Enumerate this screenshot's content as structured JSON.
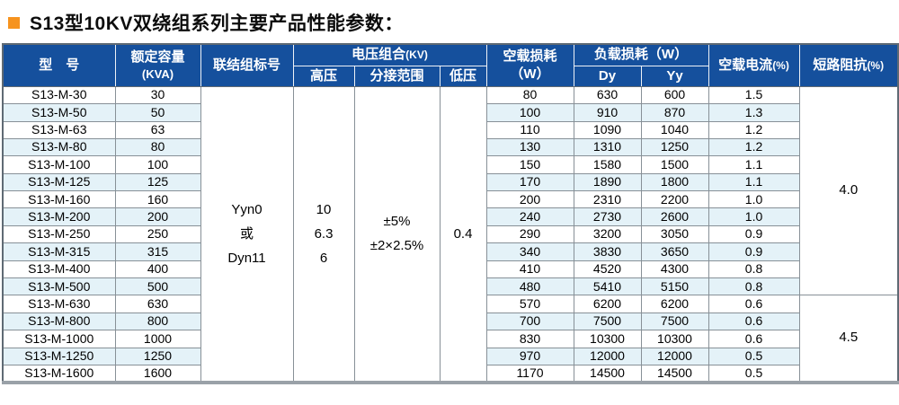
{
  "page": {
    "title": "S13型10KV双绕组系列主要产品性能参数："
  },
  "colors": {
    "header_bg": "#15509D",
    "row_alt_bg": "#E4F2F8",
    "bullet_orange": "#F6931E",
    "border_gray": "#879097"
  },
  "table": {
    "headers": {
      "model": "型　号",
      "capacity_line1": "额定容量",
      "capacity_line2": "(KVA)",
      "connection": "联结组标号",
      "voltage_label": "电压组合",
      "voltage_suffix": "(KV)",
      "hv": "高压",
      "tap": "分接范围",
      "lv": "低压",
      "no_load_loss_line1": "空载损耗",
      "no_load_loss_line2": "（W）",
      "load_loss": "负载损耗（W）",
      "dy": "Dy",
      "yy": "Yy",
      "no_load_current_label": "空载电流",
      "no_load_current_suffix": "(%)",
      "impedance_label": "短路阻抗",
      "impedance_suffix": "(%)"
    },
    "merged_columns": [
      {
        "key": "connection",
        "lines": [
          "Yyn0",
          "或",
          "Dyn11"
        ]
      },
      {
        "key": "hv",
        "lines": [
          "10",
          "6.3",
          "6"
        ]
      },
      {
        "key": "tap",
        "lines": [
          "±5%",
          "±2×2.5%"
        ]
      },
      {
        "key": "lv",
        "lines": [
          "0.4"
        ]
      }
    ],
    "impedance_segments": [
      {
        "value": "4.0",
        "rows": 12
      },
      {
        "value": "4.5",
        "rows": 5
      }
    ],
    "rows": [
      {
        "model": "S13-M-30",
        "kva": "30",
        "loss": "80",
        "dy": "630",
        "yy": "600",
        "current": "1.5"
      },
      {
        "model": "S13-M-50",
        "kva": "50",
        "loss": "100",
        "dy": "910",
        "yy": "870",
        "current": "1.3"
      },
      {
        "model": "S13-M-63",
        "kva": "63",
        "loss": "110",
        "dy": "1090",
        "yy": "1040",
        "current": "1.2"
      },
      {
        "model": "S13-M-80",
        "kva": "80",
        "loss": "130",
        "dy": "1310",
        "yy": "1250",
        "current": "1.2"
      },
      {
        "model": "S13-M-100",
        "kva": "100",
        "loss": "150",
        "dy": "1580",
        "yy": "1500",
        "current": "1.1"
      },
      {
        "model": "S13-M-125",
        "kva": "125",
        "loss": "170",
        "dy": "1890",
        "yy": "1800",
        "current": "1.1"
      },
      {
        "model": "S13-M-160",
        "kva": "160",
        "loss": "200",
        "dy": "2310",
        "yy": "2200",
        "current": "1.0"
      },
      {
        "model": "S13-M-200",
        "kva": "200",
        "loss": "240",
        "dy": "2730",
        "yy": "2600",
        "current": "1.0"
      },
      {
        "model": "S13-M-250",
        "kva": "250",
        "loss": "290",
        "dy": "3200",
        "yy": "3050",
        "current": "0.9"
      },
      {
        "model": "S13-M-315",
        "kva": "315",
        "loss": "340",
        "dy": "3830",
        "yy": "3650",
        "current": "0.9"
      },
      {
        "model": "S13-M-400",
        "kva": "400",
        "loss": "410",
        "dy": "4520",
        "yy": "4300",
        "current": "0.8"
      },
      {
        "model": "S13-M-500",
        "kva": "500",
        "loss": "480",
        "dy": "5410",
        "yy": "5150",
        "current": "0.8"
      },
      {
        "model": "S13-M-630",
        "kva": "630",
        "loss": "570",
        "dy": "6200",
        "yy": "6200",
        "current": "0.6"
      },
      {
        "model": "S13-M-800",
        "kva": "800",
        "loss": "700",
        "dy": "7500",
        "yy": "7500",
        "current": "0.6"
      },
      {
        "model": "S13-M-1000",
        "kva": "1000",
        "loss": "830",
        "dy": "10300",
        "yy": "10300",
        "current": "0.6"
      },
      {
        "model": "S13-M-1250",
        "kva": "1250",
        "loss": "970",
        "dy": "12000",
        "yy": "12000",
        "current": "0.5"
      },
      {
        "model": "S13-M-1600",
        "kva": "1600",
        "loss": "1170",
        "dy": "14500",
        "yy": "14500",
        "current": "0.5"
      }
    ]
  }
}
